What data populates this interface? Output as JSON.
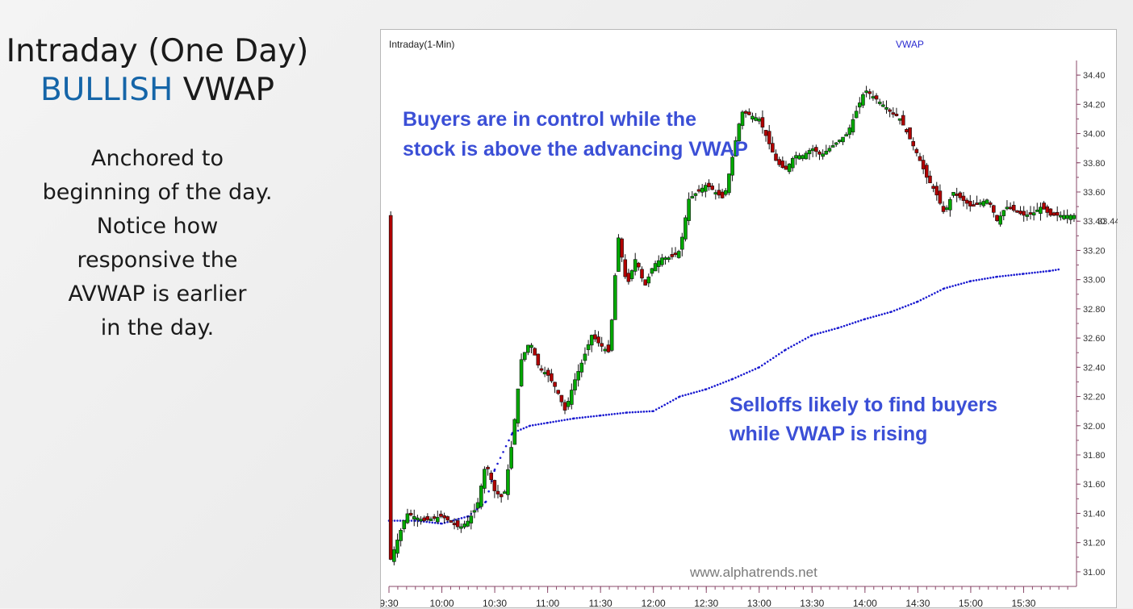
{
  "slide": {
    "title_line1": "Intraday (One Day)",
    "title_bullish": "BULLISH",
    "title_vwap": "VWAP",
    "description": [
      "Anchored to",
      "beginning of the day.",
      "Notice how",
      "responsive the",
      "AVWAP is earlier",
      "in the day."
    ]
  },
  "chart_data": {
    "type": "line",
    "header_left": "Intraday(1-Min)",
    "header_center": "VWAP",
    "watermark": "www.alphatrends.net",
    "price_marker": "33.44",
    "annotations": [
      {
        "lines": [
          "Buyers are in control while the",
          "stock is above the advancing VWAP"
        ]
      },
      {
        "lines": [
          "Selloffs likely to find buyers",
          "while VWAP is rising"
        ]
      }
    ],
    "x_tick_labels": [
      "9:30",
      "10:00",
      "10:30",
      "11:00",
      "11:30",
      "12:00",
      "12:30",
      "13:00",
      "13:30",
      "14:00",
      "14:30",
      "15:00",
      "15:30"
    ],
    "y_tick_labels": [
      "34.40",
      "34.20",
      "34.00",
      "33.80",
      "33.60",
      "33.40",
      "33.20",
      "33.00",
      "32.80",
      "32.60",
      "32.40",
      "32.20",
      "32.00",
      "31.80",
      "31.60",
      "31.40",
      "31.20",
      "31.00"
    ],
    "ylim": [
      30.9,
      34.5
    ],
    "x_minutes_range": [
      570,
      960
    ],
    "colors": {
      "up": "#00a800",
      "down": "#b00000",
      "vwap": "#1a1ad0",
      "annotation": "#3b4fd6"
    },
    "series": [
      {
        "kind": "price",
        "x": [
          "9:30",
          "9:40",
          "9:50",
          "10:00",
          "10:10",
          "10:15",
          "10:20",
          "10:25",
          "10:30",
          "10:35",
          "10:40",
          "10:45",
          "10:50",
          "10:55",
          "11:00",
          "11:05",
          "11:10",
          "11:15",
          "11:20",
          "11:25",
          "11:30",
          "11:35",
          "11:40",
          "11:45",
          "11:50",
          "11:55",
          "12:00",
          "12:05",
          "12:10",
          "12:15",
          "12:20",
          "12:30",
          "12:40",
          "12:50",
          "13:00",
          "13:05",
          "13:10",
          "13:15",
          "13:20",
          "13:25",
          "13:30",
          "13:35",
          "13:40",
          "13:50",
          "14:00",
          "14:10",
          "14:20",
          "14:30",
          "14:35",
          "14:40",
          "14:45",
          "14:50",
          "15:00",
          "15:10",
          "15:15",
          "15:20",
          "15:30",
          "15:35",
          "15:40",
          "15:45",
          "15:50"
        ],
        "values": [
          31.05,
          31.4,
          31.35,
          31.38,
          31.3,
          31.35,
          31.45,
          31.75,
          31.55,
          31.5,
          31.9,
          32.45,
          32.58,
          32.4,
          32.35,
          32.25,
          32.1,
          32.3,
          32.45,
          32.62,
          32.55,
          32.5,
          33.3,
          32.95,
          33.15,
          32.95,
          33.1,
          33.15,
          33.15,
          33.2,
          33.55,
          33.65,
          33.55,
          34.15,
          34.1,
          33.95,
          33.8,
          33.75,
          33.85,
          33.85,
          33.9,
          33.85,
          33.9,
          34.0,
          34.3,
          34.2,
          34.1,
          33.85,
          33.7,
          33.6,
          33.45,
          33.6,
          33.5,
          33.55,
          33.4,
          33.5,
          33.44,
          33.45,
          33.5,
          33.44,
          33.44
        ]
      },
      {
        "name": "VWAP",
        "x": [
          "9:30",
          "9:45",
          "10:00",
          "10:15",
          "10:25",
          "10:30",
          "10:40",
          "10:50",
          "11:00",
          "11:15",
          "11:30",
          "11:45",
          "12:00",
          "12:15",
          "12:30",
          "12:45",
          "13:00",
          "13:15",
          "13:30",
          "13:45",
          "14:00",
          "14:15",
          "14:30",
          "14:45",
          "15:00",
          "15:15",
          "15:30",
          "15:45",
          "15:50"
        ],
        "values": [
          31.35,
          31.35,
          31.33,
          31.38,
          31.48,
          31.7,
          31.95,
          32.0,
          32.02,
          32.05,
          32.07,
          32.09,
          32.1,
          32.2,
          32.25,
          32.32,
          32.4,
          32.52,
          32.62,
          32.67,
          32.73,
          32.78,
          32.85,
          32.94,
          32.99,
          33.02,
          33.04,
          33.06,
          33.07
        ]
      }
    ]
  }
}
